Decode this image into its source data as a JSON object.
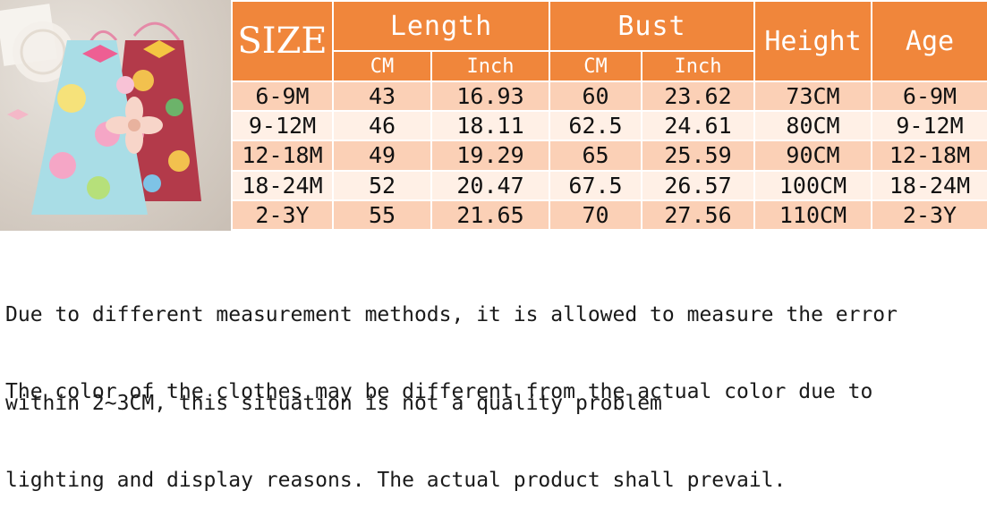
{
  "table": {
    "size_label": "SIZE",
    "length_label": "Length",
    "bust_label": "Bust",
    "height_label": "Height",
    "age_label": "Age",
    "units": [
      "CM",
      "Inch",
      "CM",
      "Inch"
    ],
    "rows": [
      [
        "6-9M",
        "43",
        "16.93",
        "60",
        "23.62",
        "73CM",
        "6-9M"
      ],
      [
        "9-12M",
        "46",
        "18.11",
        "62.5",
        "24.61",
        "80CM",
        "9-12M"
      ],
      [
        "12-18M",
        "49",
        "19.29",
        "65",
        "25.59",
        "90CM",
        "12-18M"
      ],
      [
        "18-24M",
        "52",
        "20.47",
        "67.5",
        "26.57",
        "100CM",
        "18-24M"
      ],
      [
        "2-3Y",
        "55",
        "21.65",
        "70",
        "27.56",
        "110CM",
        "2-3Y"
      ]
    ]
  },
  "notes": {
    "note1_line1": "Due to different measurement methods, it is allowed to measure the error",
    "note1_line2": "within 2~3CM, this situation is not a quality problem",
    "note2_line1": "The color of the clothes may be different from the actual color due to",
    "note2_line2": "lighting and display reasons. The actual product shall prevail."
  },
  "colors": {
    "header_orange": "#f0863b",
    "row_peach": "#fbd0b6",
    "row_light": "#fff0e6"
  }
}
